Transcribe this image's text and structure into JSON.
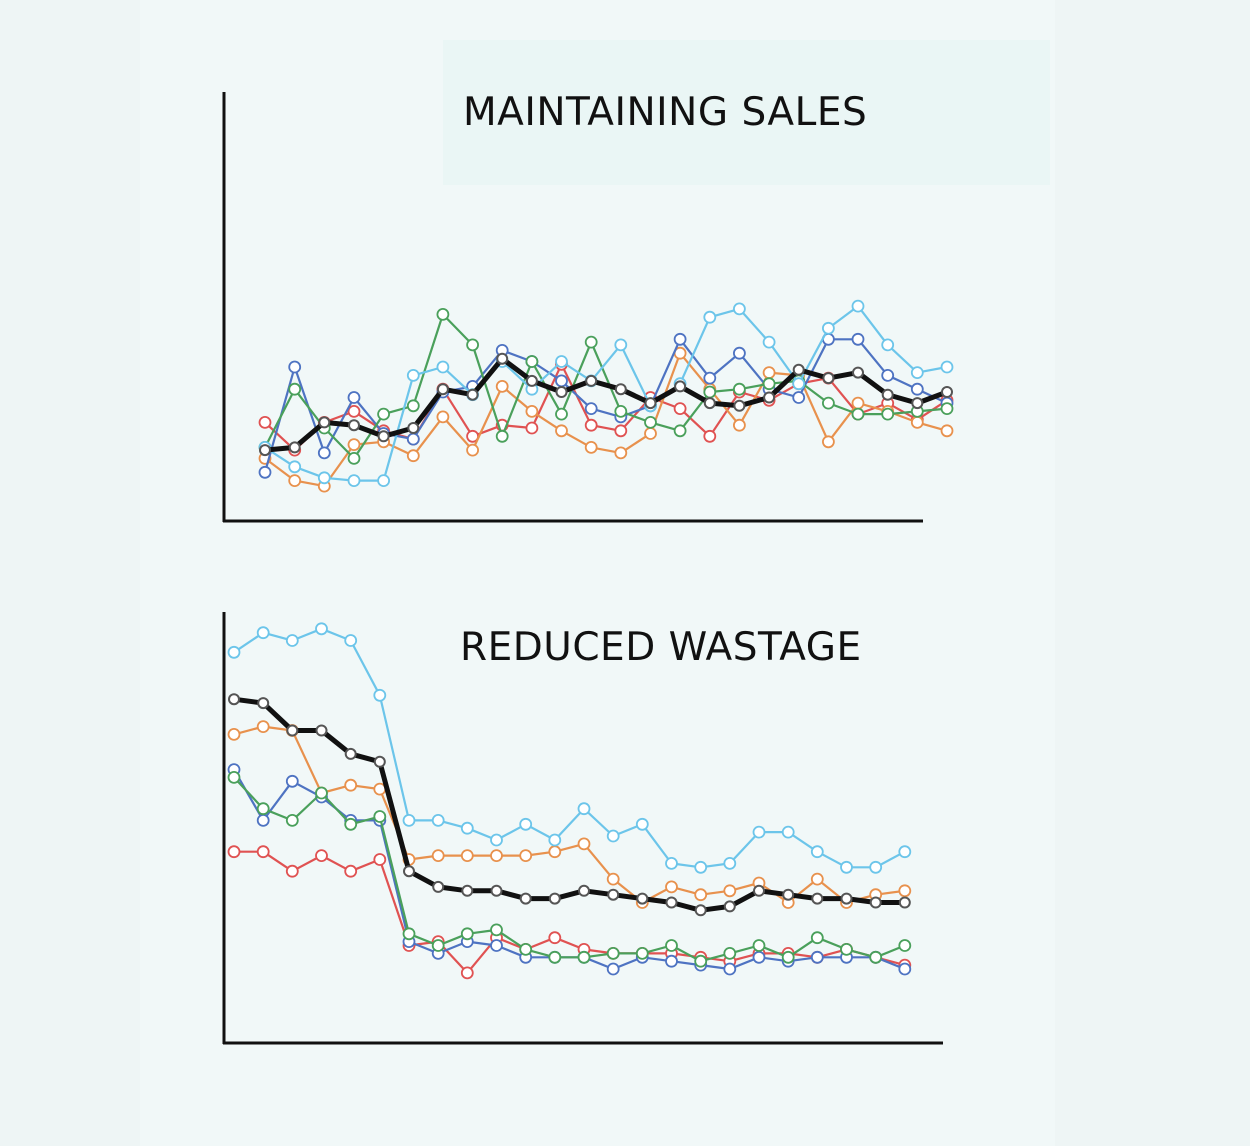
{
  "chart_data": [
    {
      "type": "line",
      "title": "MAINTAINING SALES",
      "xlabel": "",
      "ylabel": "",
      "xlim": [
        0,
        23
      ],
      "ylim": [
        0,
        100
      ],
      "grid": false,
      "legend": "none",
      "x": [
        0,
        1,
        2,
        3,
        4,
        5,
        6,
        7,
        8,
        9,
        10,
        11,
        12,
        13,
        14,
        15,
        16,
        17,
        18,
        19,
        20,
        21,
        22,
        23
      ],
      "series": [
        {
          "color": "#e05252",
          "values": [
            28,
            18,
            28,
            32,
            25,
            22,
            40,
            23,
            27,
            26,
            49,
            27,
            25,
            37,
            33,
            23,
            39,
            36,
            42,
            44,
            31,
            35,
            29,
            36
          ]
        },
        {
          "color": "#e8914d",
          "values": [
            15,
            7,
            5,
            20,
            21,
            16,
            30,
            18,
            41,
            32,
            25,
            19,
            17,
            24,
            53,
            40,
            27,
            46,
            45,
            21,
            35,
            32,
            28,
            25
          ]
        },
        {
          "color": "#4e73c2",
          "values": [
            10,
            48,
            17,
            37,
            24,
            22,
            39,
            41,
            54,
            50,
            43,
            33,
            30,
            34,
            58,
            44,
            53,
            40,
            37,
            58,
            58,
            45,
            40,
            35
          ]
        },
        {
          "color": "#4aa05b",
          "values": [
            19,
            40,
            26,
            15,
            31,
            34,
            67,
            56,
            23,
            50,
            31,
            57,
            32,
            28,
            25,
            39,
            40,
            42,
            43,
            35,
            31,
            31,
            32,
            33
          ]
        },
        {
          "color": "#6cc5ea",
          "values": [
            19,
            12,
            8,
            7,
            7,
            45,
            48,
            38,
            50,
            40,
            50,
            43,
            56,
            34,
            42,
            66,
            69,
            57,
            42,
            62,
            70,
            56,
            46,
            48
          ]
        },
        {
          "color": "#111111",
          "values": [
            18,
            19,
            28,
            27,
            23,
            26,
            40,
            38,
            51,
            43,
            39,
            43,
            40,
            35,
            41,
            35,
            34,
            37,
            47,
            44,
            46,
            38,
            35,
            39
          ]
        }
      ]
    },
    {
      "type": "line",
      "title": "REDUCED WASTAGE",
      "xlabel": "",
      "ylabel": "",
      "xlim": [
        0,
        24
      ],
      "ylim": [
        0,
        100
      ],
      "grid": false,
      "legend": "none",
      "x": [
        0,
        1,
        2,
        3,
        4,
        5,
        6,
        7,
        8,
        9,
        10,
        11,
        12,
        13,
        14,
        15,
        16,
        17,
        18,
        19,
        20,
        21,
        22,
        23
      ],
      "series": [
        {
          "color": "#e05252",
          "values": [
            41,
            41,
            36,
            40,
            36,
            39,
            17,
            18,
            10,
            19,
            16,
            19,
            16,
            15,
            15,
            15,
            14,
            13,
            15,
            15,
            14,
            16,
            14,
            12
          ]
        },
        {
          "color": "#e8914d",
          "values": [
            71,
            73,
            72,
            56,
            58,
            57,
            39,
            40,
            40,
            40,
            40,
            41,
            43,
            34,
            28,
            32,
            30,
            31,
            33,
            28,
            34,
            28,
            30,
            31
          ]
        },
        {
          "color": "#4e73c2",
          "values": [
            62,
            49,
            59,
            55,
            49,
            49,
            18,
            15,
            18,
            17,
            14,
            14,
            14,
            11,
            14,
            13,
            12,
            11,
            14,
            13,
            14,
            14,
            14,
            11
          ]
        },
        {
          "color": "#4aa05b",
          "values": [
            60,
            52,
            49,
            56,
            48,
            50,
            20,
            17,
            20,
            21,
            16,
            14,
            14,
            15,
            15,
            17,
            13,
            15,
            17,
            14,
            19,
            16,
            14,
            17
          ]
        },
        {
          "color": "#6cc5ea",
          "values": [
            92,
            97,
            95,
            98,
            95,
            81,
            49,
            49,
            47,
            44,
            48,
            44,
            52,
            45,
            48,
            38,
            37,
            38,
            46,
            46,
            41,
            37,
            37,
            41
          ]
        },
        {
          "color": "#111111",
          "values": [
            80,
            79,
            72,
            72,
            66,
            64,
            36,
            32,
            31,
            31,
            29,
            29,
            31,
            30,
            29,
            28,
            26,
            27,
            31,
            30,
            29,
            29,
            28,
            28
          ]
        }
      ]
    }
  ]
}
